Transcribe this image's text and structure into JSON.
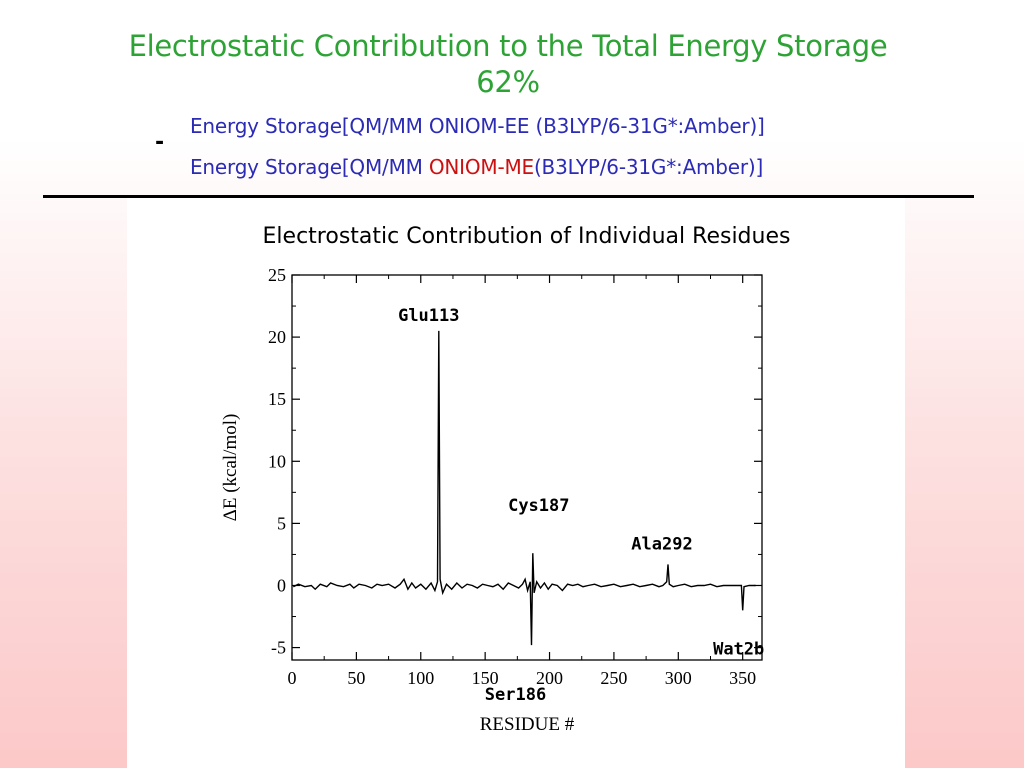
{
  "colors": {
    "title": "#2ea335",
    "formula": "#2b2bb5",
    "highlight": "#cc1010",
    "text": "#000000"
  },
  "slide": {
    "title_line1": "Electrostatic Contribution to the Total Energy Storage",
    "title_line2": "62%",
    "minus": "-",
    "numerator": "Energy Storage[QM/MM ONIOM-EE (B3LYP/6-31G*:Amber)]",
    "denominator_prefix": "Energy Storage[QM/MM ",
    "denominator_highlight": "ONIOM-ME",
    "denominator_suffix": "(B3LYP/6-31G*:Amber)]"
  },
  "chart_data": {
    "type": "line",
    "title": "Electrostatic Contribution of Individual Residues",
    "xlabel": "RESIDUE #",
    "ylabel": "ΔE (kcal/mol)",
    "xlim": [
      0,
      365
    ],
    "ylim": [
      -6,
      25
    ],
    "xticks": [
      0,
      50,
      100,
      150,
      200,
      250,
      300,
      350
    ],
    "yticks": [
      -5,
      0,
      5,
      10,
      15,
      20,
      25
    ],
    "grid": false,
    "series": [
      {
        "points": [
          [
            1,
            -0.1
          ],
          [
            5,
            0.1
          ],
          [
            10,
            -0.1
          ],
          [
            15,
            0.0
          ],
          [
            18,
            -0.3
          ],
          [
            22,
            0.1
          ],
          [
            27,
            -0.1
          ],
          [
            30,
            0.2
          ],
          [
            35,
            0.0
          ],
          [
            40,
            -0.1
          ],
          [
            45,
            0.1
          ],
          [
            48,
            -0.2
          ],
          [
            52,
            0.1
          ],
          [
            57,
            0.0
          ],
          [
            62,
            -0.2
          ],
          [
            66,
            0.1
          ],
          [
            70,
            0.0
          ],
          [
            75,
            0.1
          ],
          [
            80,
            -0.2
          ],
          [
            84,
            0.1
          ],
          [
            87,
            0.5
          ],
          [
            90,
            -0.3
          ],
          [
            93,
            0.2
          ],
          [
            96,
            -0.2
          ],
          [
            100,
            0.1
          ],
          [
            104,
            -0.3
          ],
          [
            108,
            0.2
          ],
          [
            111,
            -0.4
          ],
          [
            113,
            0.3
          ],
          [
            114,
            20.5
          ],
          [
            115,
            0.5
          ],
          [
            117,
            -0.6
          ],
          [
            120,
            0.1
          ],
          [
            124,
            -0.3
          ],
          [
            128,
            0.2
          ],
          [
            132,
            -0.2
          ],
          [
            136,
            0.1
          ],
          [
            140,
            0.0
          ],
          [
            144,
            -0.2
          ],
          [
            148,
            0.1
          ],
          [
            152,
            0.0
          ],
          [
            156,
            -0.1
          ],
          [
            160,
            0.1
          ],
          [
            164,
            -0.3
          ],
          [
            168,
            0.2
          ],
          [
            172,
            0.0
          ],
          [
            176,
            -0.2
          ],
          [
            179,
            0.1
          ],
          [
            181,
            0.5
          ],
          [
            183,
            -0.4
          ],
          [
            185,
            0.3
          ],
          [
            186,
            -4.8
          ],
          [
            187,
            2.6
          ],
          [
            188,
            -0.6
          ],
          [
            190,
            0.3
          ],
          [
            193,
            -0.2
          ],
          [
            196,
            0.2
          ],
          [
            199,
            -0.3
          ],
          [
            202,
            0.1
          ],
          [
            206,
            0.0
          ],
          [
            210,
            -0.4
          ],
          [
            214,
            0.1
          ],
          [
            218,
            0.0
          ],
          [
            222,
            0.1
          ],
          [
            226,
            -0.1
          ],
          [
            230,
            0.0
          ],
          [
            235,
            0.1
          ],
          [
            240,
            -0.1
          ],
          [
            245,
            0.0
          ],
          [
            250,
            0.1
          ],
          [
            255,
            -0.1
          ],
          [
            260,
            0.0
          ],
          [
            265,
            0.1
          ],
          [
            270,
            -0.1
          ],
          [
            275,
            0.0
          ],
          [
            280,
            0.1
          ],
          [
            285,
            -0.1
          ],
          [
            288,
            0.0
          ],
          [
            291,
            0.3
          ],
          [
            292,
            1.7
          ],
          [
            293,
            0.1
          ],
          [
            296,
            -0.1
          ],
          [
            300,
            0.0
          ],
          [
            305,
            0.1
          ],
          [
            310,
            -0.1
          ],
          [
            315,
            0.0
          ],
          [
            320,
            0.0
          ],
          [
            325,
            0.1
          ],
          [
            330,
            -0.1
          ],
          [
            335,
            0.0
          ],
          [
            340,
            0.0
          ],
          [
            345,
            0.0
          ],
          [
            349,
            0.0
          ],
          [
            350,
            -2.0
          ],
          [
            351,
            -0.1
          ],
          [
            355,
            0.0
          ],
          [
            360,
            0.0
          ]
        ]
      }
    ],
    "annotations": [
      {
        "text": "Glu113",
        "x": 114,
        "y": 20.5
      },
      {
        "text": "Cys187",
        "x": 187,
        "y": 2.6
      },
      {
        "text": "Ser186",
        "x": 186,
        "y": -4.8
      },
      {
        "text": "Ala292",
        "x": 292,
        "y": 1.7
      },
      {
        "text": "Wat2b",
        "x": 350,
        "y": -2.0
      }
    ]
  }
}
